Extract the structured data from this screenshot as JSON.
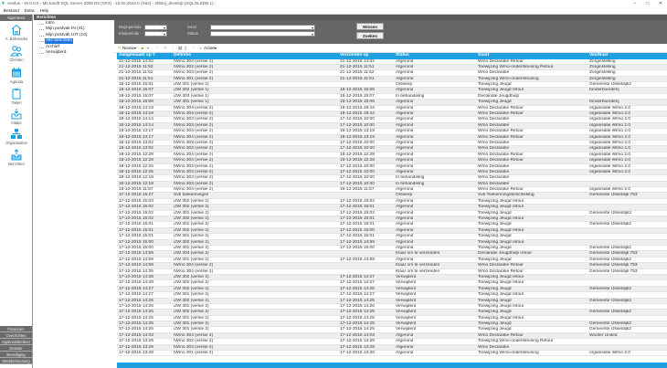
{
  "window": {
    "title": "Aeolus - v9.0.0.0 - Microsoft SQL Server 2008 R2 (SP2) - 10.50.4042.0 (X64) - ebbtoj_develop (SQLOLEDB.1) -"
  },
  "menu": [
    "Bestand",
    "Extra",
    "Help"
  ],
  "sidebar": {
    "header": "Algemeen",
    "items": [
      {
        "label": "A. Beheerder",
        "icon": "home-icon"
      },
      {
        "label": "Clienten",
        "icon": "users-icon"
      },
      {
        "label": "Agenda",
        "icon": "calendar-icon"
      },
      {
        "label": "Taken",
        "icon": "clipboard-icon"
      },
      {
        "label": "Intake",
        "icon": "inbox-icon"
      },
      {
        "label": "Organisaties",
        "icon": "organization-icon"
      },
      {
        "label": "Berichten",
        "icon": "outbox-icon"
      }
    ],
    "bottom_buttons": [
      "Financien",
      "Overzichten",
      "Applicatiebeheer",
      "Dossier",
      "Beveiliging",
      "Werkbeheersing"
    ]
  },
  "panel": {
    "title": "Berichten"
  },
  "tree": {
    "items": [
      "Intro",
      "Mijn postvak IN (41)",
      "Mijn postvak UIT (10)",
      "Alle berichten",
      "Archief",
      "Verwijderd"
    ],
    "selected": 3
  },
  "filter": {
    "begin_label": "Beginperiode",
    "begin_value": "__-__-____",
    "end_label": "Eindperiode",
    "end_value": "__-__-____",
    "soort_label": "Soort",
    "soort_value": "",
    "status_label": "Status",
    "status_value": "",
    "clear_button": "Wissen",
    "search_button": "Zoeken"
  },
  "toolbar": {
    "new_label": "Nieuw",
    "actions_label": "Acties"
  },
  "table": {
    "columns": [
      "Aangemaakt op",
      "Definitie",
      "Verzonden op",
      "Status",
      "Soort",
      "Van/Naar"
    ],
    "sort_column": 0,
    "rows": [
      [
        "21-12-2015 14:02",
        "IWmo 304 (versie 2)",
        "21-12-2015 14:02",
        "Afgerond",
        "Wmo Declaratie Retour",
        "Zorginstelling"
      ],
      [
        "21-12-2015 11:52",
        "IWmo 302 (versie 2)",
        "21-12-2015 11:51",
        "Afgerond",
        "Toewijzing Wmo-ondersteuning Retour",
        "Zorginstelling"
      ],
      [
        "21-12-2015 11:52",
        "IWmo 303 (versie 2)",
        "21-12-2015 11:52",
        "Afgerond",
        "Wmo Declaratie",
        "Zorginstelling"
      ],
      [
        "21-12-2015 11:51",
        "IWmo 301 (versie 2)",
        "21-12-2015 11:51",
        "Afgerond",
        "Toewijzing Wmo-ondersteuning",
        "Zorginstelling"
      ],
      [
        "18-12-2015 16:51",
        "iJW 301 (versie 2)",
        "",
        "Ontwerp",
        "Toewijzing Jeugd",
        "Gemeente IJsseldijk2"
      ],
      [
        "18-12-2015 15:07",
        "iJW 302 (versie 1)",
        "18-12-2015 15:06",
        "Afgerond",
        "Toewijzing Jeugd retour",
        "Kinderboerderij"
      ],
      [
        "18-12-2015 15:07",
        "iJW 303 (versie 1)",
        "18-12-2015 15:07",
        "In behandeling",
        "Declaratie Jeugdhulp",
        ""
      ],
      [
        "18-12-2015 15:06",
        "iJW 301 (versie 1)",
        "18-12-2015 15:06",
        "Afgerond",
        "Toewijzing Jeugd",
        "Kinderboerderij"
      ],
      [
        "18-12-2015 14:19",
        "IWmo 304 (versie 2)",
        "18-12-2015 19:44",
        "Afgerond",
        "Wmo Declaratie Retour",
        "organisatie iWmo 2.0"
      ],
      [
        "18-12-2015 14:19",
        "IWmo 304 (versie 2)",
        "18-12-2015 19:44",
        "Afgerond",
        "Wmo Declaratie Retour",
        "organisatie iWmo 2.0"
      ],
      [
        "18-12-2015 14:14",
        "IWmo 303 (versie 2)",
        "17-12-2015 10:00",
        "Afgerond",
        "Wmo Declaratie",
        "organisatie iWmo 2.0"
      ],
      [
        "18-12-2015 14:14",
        "IWmo 303 (versie 2)",
        "17-12-2015 10:00",
        "Afgerond",
        "Wmo Declaratie",
        "organisatie iWmo 2.0"
      ],
      [
        "18-12-2015 13:17",
        "IWmo 304 (versie 2)",
        "18-12-2015 13:19",
        "Afgerond",
        "Wmo Declaratie Retour",
        "organisatie iWmo 2.0"
      ],
      [
        "18-12-2015 13:17",
        "IWmo 304 (versie 2)",
        "18-12-2015 13:19",
        "Afgerond",
        "Wmo Declaratie Retour",
        "organisatie iWmo 2.0"
      ],
      [
        "18-12-2015 13:02",
        "IWmo 303 (versie 2)",
        "17-12-2015 10:00",
        "Afgerond",
        "Wmo Declaratie",
        "organisatie iWmo 2.0"
      ],
      [
        "18-12-2015 13:02",
        "IWmo 303 (versie 2)",
        "17-12-2015 10:00",
        "Afgerond",
        "Wmo Declaratie",
        "organisatie iWmo 2.0"
      ],
      [
        "18-12-2015 12:28",
        "IWmo 304 (versie 2)",
        "18-12-2015 12:28",
        "Afgerond",
        "Wmo Declaratie Retour",
        "organisatie iWmo 2.0"
      ],
      [
        "18-12-2015 12:28",
        "IWmo 304 (versie 2)",
        "18-12-2015 12:28",
        "Afgerond",
        "Wmo Declaratie Retour",
        "organisatie iWmo 2.0"
      ],
      [
        "18-12-2015 12:25",
        "IWmo 303 (versie 2)",
        "17-12-2015 10:00",
        "Afgerond",
        "Wmo Declaratie",
        "organisatie iWmo 2.0"
      ],
      [
        "18-12-2015 12:25",
        "IWmo 303 (versie 2)",
        "17-12-2015 10:00",
        "Afgerond",
        "Wmo Declaratie",
        "organisatie iWmo 2.0"
      ],
      [
        "18-12-2015 12:18",
        "IWmo 303 (versie 2)",
        "17-12-2015 10:00",
        "In behandeling",
        "Wmo Declaratie",
        ""
      ],
      [
        "18-12-2015 12:18",
        "IWmo 303 (versie 2)",
        "17-12-2015 10:00",
        "In behandeling",
        "Wmo Declaratie",
        ""
      ],
      [
        "18-12-2015 11:57",
        "IWmo 304 (versie 2)",
        "18-12-2015 11:57",
        "Afgerond",
        "Wmo Declaratie Retour",
        "organisatie iWmo 2.0"
      ],
      [
        "17-12-2015 15:27",
        "Svb toekenningen",
        "",
        "Ontwerp",
        "Svb Toekenningsbeschikking",
        "Gemeente IJsseldijk 753"
      ],
      [
        "17-12-2015 15:03",
        "iJW 302 (versie 2)",
        "17-12-2015 15:02",
        "Afgerond",
        "Toewijzing Jeugd retour",
        ""
      ],
      [
        "17-12-2015 15:02",
        "iJW 302 (versie 2)",
        "17-12-2015 15:01",
        "Afgerond",
        "Toewijzing Jeugd retour",
        ""
      ],
      [
        "17-12-2015 15:02",
        "iJW 301 (versie 2)",
        "17-12-2015 15:02",
        "Afgerond",
        "Toewijzing Jeugd",
        "Gemeente IJsseldijk2"
      ],
      [
        "17-12-2015 15:02",
        "iJW 302 (versie 2)",
        "17-12-2015 15:01",
        "Afgerond",
        "Toewijzing Jeugd retour",
        ""
      ],
      [
        "17-12-2015 15:01",
        "iJW 301 (versie 2)",
        "17-12-2015 15:01",
        "Afgerond",
        "Toewijzing Jeugd",
        "Gemeente IJsseldijk2"
      ],
      [
        "17-12-2015 15:01",
        "iJW 302 (versie 2)",
        "17-12-2015 15:00",
        "Afgerond",
        "Toewijzing Jeugd retour",
        ""
      ],
      [
        "17-12-2015 15:01",
        "iJW 301 (versie 2)",
        "17-12-2015 15:01",
        "Afgerond",
        "Toewijzing Jeugd",
        ""
      ],
      [
        "17-12-2015 15:00",
        "iJW 302 (versie 2)",
        "17-12-2015 14:59",
        "Afgerond",
        "Toewijzing Jeugd retour",
        ""
      ],
      [
        "17-12-2015 15:00",
        "iJW 301 (versie 2)",
        "17-12-2015 15:00",
        "Afgerond",
        "Toewijzing Jeugd",
        "Gemeente IJsseldijk2"
      ],
      [
        "17-12-2015 14:59",
        "iJW 304 (versie 2)",
        "",
        "Klaar om te verzenden",
        "Declaratie Jeugdhulp retour",
        "Gemeente IJsseldijk 753"
      ],
      [
        "17-12-2015 14:59",
        "iJW 301 (versie 2)",
        "17-12-2015 14:59",
        "Afgerond",
        "Toewijzing Jeugd",
        "Gemeente IJsseldijk2"
      ],
      [
        "17-12-2015 14:59",
        "IWmo 304 (versie 2)",
        "",
        "Klaar om te verzenden",
        "Wmo Declaratie Retour",
        "Gemeente IJsseldijk 753"
      ],
      [
        "17-12-2015 14:35",
        "IWmo 304 (versie 2)",
        "",
        "Klaar om te verzenden",
        "Wmo Declaratie Retour",
        "Gemeente IJsseldijk 753"
      ],
      [
        "17-12-2015 14:28",
        "iJW 302 (versie 2)",
        "17-12-2015 14:27",
        "Verwijderd",
        "Toewijzing Jeugd retour",
        ""
      ],
      [
        "17-12-2015 14:28",
        "iJW 302 (versie 2)",
        "17-12-2015 14:27",
        "Verwijderd",
        "Toewijzing Jeugd retour",
        ""
      ],
      [
        "17-12-2015 14:27",
        "iJW 302 (versie 2)",
        "17-12-2015 14:26",
        "Verwijderd",
        "Toewijzing Jeugd",
        "Gemeente IJsseldijk2"
      ],
      [
        "17-12-2015 14:27",
        "iJW 301 (versie 2)",
        "17-12-2015 14:27",
        "Verwijderd",
        "Toewijzing Jeugd retour",
        ""
      ],
      [
        "17-12-2015 14:26",
        "iJW 302 (versie 2)",
        "17-12-2015 14:25",
        "Verwijderd",
        "Toewijzing Jeugd",
        "Gemeente IJsseldijk2"
      ],
      [
        "17-12-2015 14:26",
        "iJW 301 (versie 2)",
        "17-12-2015 14:26",
        "Verwijderd",
        "Toewijzing Jeugd retour",
        ""
      ],
      [
        "17-12-2015 14:26",
        "iJW 302 (versie 2)",
        "17-12-2015 14:25",
        "Verwijderd",
        "Toewijzing Jeugd",
        "Gemeente IJsseldijk2"
      ],
      [
        "17-12-2015 14:25",
        "iJW 301 (versie 2)",
        "17-12-2015 14:25",
        "Verwijderd",
        "Toewijzing Jeugd retour",
        ""
      ],
      [
        "17-12-2015 14:25",
        "iJW 301 (versie 2)",
        "17-12-2015 14:25",
        "Verwijderd",
        "Toewijzing Jeugd",
        "Gemeente IJsseldijk2"
      ],
      [
        "17-12-2015 14:25",
        "iJW 301 (versie 2)",
        "17-12-2015 14:25",
        "Verwijderd",
        "Toewijzing Jeugd",
        "Gemeente IJsseldijk2"
      ],
      [
        "17-12-2015 14:03",
        "IWmo 304 (versie 2)",
        "17-12-2015 14:03",
        "Afgerond",
        "Wmo Declaratie Retour",
        "Woofer United"
      ],
      [
        "17-12-2015 13:29",
        "IWmo 302 (versie 2)",
        "17-12-2015 13:28",
        "Afgerond",
        "Toewijzing Wmo-ondersteuning Retour",
        ""
      ],
      [
        "17-12-2015 13:29",
        "IWmo 303 (versie 2)",
        "17-12-2015 13:29",
        "Afgerond",
        "Wmo Declaratie",
        ""
      ],
      [
        "17-12-2015 13:28",
        "IWmo 301 (versie 2)",
        "17-12-2015 13:28",
        "Afgerond",
        "Toewijzing Wmo-ondersteuning",
        "organisatie iWmo 2.0"
      ]
    ]
  },
  "colors": {
    "accent": "#1ea0e0",
    "panel_dark": "#666666",
    "selected": "#1e78e0"
  }
}
